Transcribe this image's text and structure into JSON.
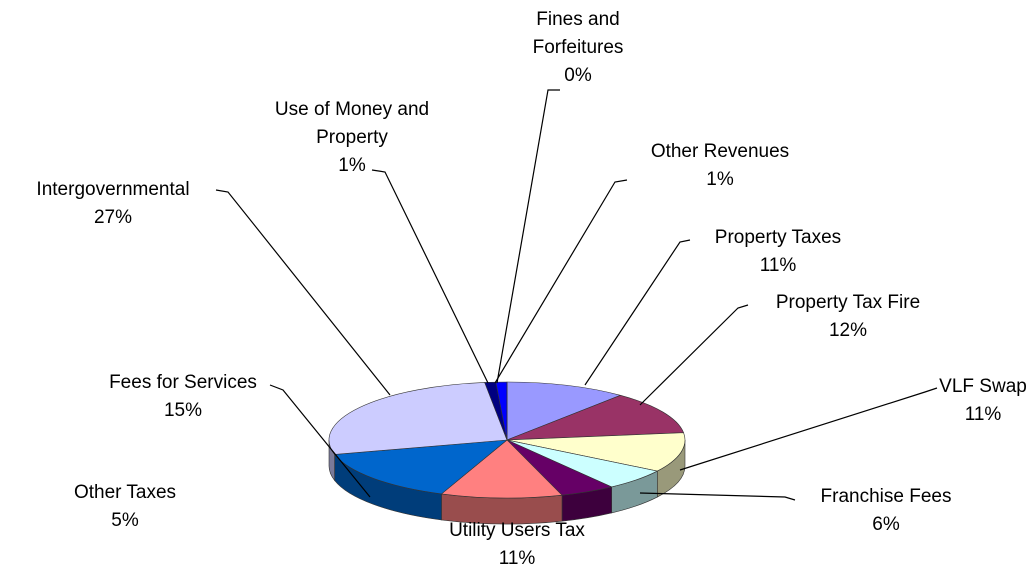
{
  "chart_data": {
    "type": "pie3d",
    "categories": [
      "Property Taxes",
      "Property Tax Fire",
      "VLF Swap",
      "Franchise Fees",
      "Other Taxes",
      "Utility Users Tax",
      "Fees for Services",
      "Intergovernmental",
      "Use of Money and Property",
      "Other Revenues",
      "Fines and Forfeitures"
    ],
    "values": [
      11,
      12,
      11,
      6,
      5,
      11,
      15,
      27,
      1,
      1,
      0
    ],
    "value_labels": [
      "11%",
      "12%",
      "11%",
      "6%",
      "5%",
      "11%",
      "15%",
      "27%",
      "1%",
      "1%",
      "0%"
    ],
    "colors": [
      "#9999ff",
      "#993366",
      "#ffffcc",
      "#ccffff",
      "#660066",
      "#ff8080",
      "#0066cc",
      "#ccccff",
      "#000080",
      "#0000ff",
      "#ff00ff"
    ]
  }
}
